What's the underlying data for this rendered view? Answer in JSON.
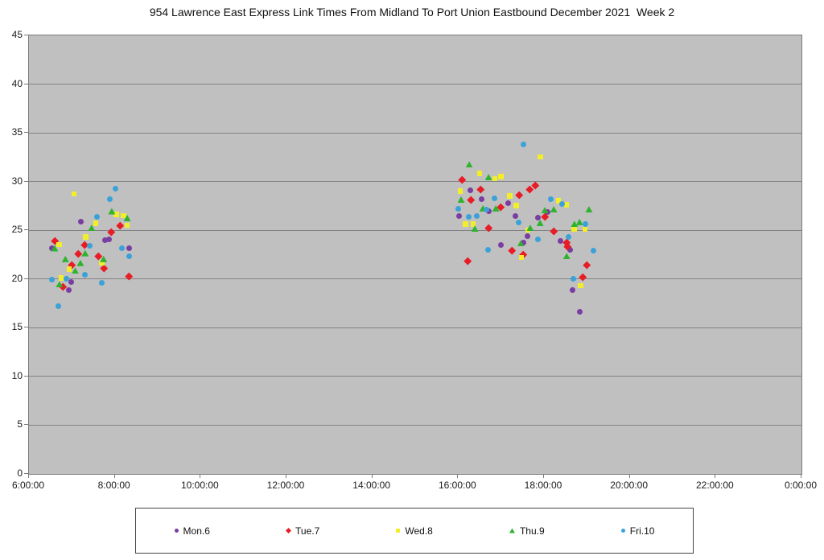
{
  "chart_data": {
    "type": "scatter",
    "title": "954 Lawrence East Express Link Times From Midland To Port Union Eastbound December 2021  Week 2",
    "xlabel": "",
    "ylabel": "",
    "x_unit": "time of day (decimal hours)",
    "y_unit": "link time (minutes)",
    "xlim": [
      6,
      24
    ],
    "ylim": [
      0,
      45
    ],
    "y_ticks": [
      0,
      5,
      10,
      15,
      20,
      25,
      30,
      35,
      40,
      45
    ],
    "x_ticks": [
      {
        "hour": 6,
        "label": "6:00:00"
      },
      {
        "hour": 8,
        "label": "8:00:00"
      },
      {
        "hour": 10,
        "label": "10:00:00"
      },
      {
        "hour": 12,
        "label": "12:00:00"
      },
      {
        "hour": 14,
        "label": "14:00:00"
      },
      {
        "hour": 16,
        "label": "16:00:00"
      },
      {
        "hour": 18,
        "label": "18:00:00"
      },
      {
        "hour": 20,
        "label": "20:00:00"
      },
      {
        "hour": 22,
        "label": "22:00:00"
      },
      {
        "hour": 24,
        "label": "0:00:00"
      }
    ],
    "grid": "horizontal",
    "legend_position": "bottom",
    "plot_bg_color": "#c0c0c0",
    "grid_color": "#828282",
    "series": [
      {
        "name": "Mon.6",
        "marker": "circle",
        "color": "#7a3da0",
        "points": [
          [
            6.53,
            23.2
          ],
          [
            6.93,
            18.9
          ],
          [
            6.98,
            19.7
          ],
          [
            7.2,
            25.9
          ],
          [
            7.77,
            24.0
          ],
          [
            7.87,
            24.1
          ],
          [
            8.34,
            23.2
          ],
          [
            16.03,
            26.5
          ],
          [
            16.29,
            29.1
          ],
          [
            16.55,
            28.2
          ],
          [
            16.71,
            27.0
          ],
          [
            17.0,
            23.5
          ],
          [
            17.17,
            27.8
          ],
          [
            17.33,
            26.5
          ],
          [
            17.53,
            23.7
          ],
          [
            17.61,
            24.4
          ],
          [
            17.85,
            26.3
          ],
          [
            18.08,
            26.9
          ],
          [
            18.38,
            23.9
          ],
          [
            18.6,
            23.0
          ],
          [
            18.67,
            18.9
          ],
          [
            18.84,
            16.6
          ]
        ]
      },
      {
        "name": "Tue.7",
        "marker": "diamond",
        "color": "#e81c25",
        "points": [
          [
            6.6,
            23.9
          ],
          [
            6.8,
            19.2
          ],
          [
            7.0,
            21.4
          ],
          [
            7.16,
            22.6
          ],
          [
            7.31,
            23.5
          ],
          [
            7.63,
            22.3
          ],
          [
            7.75,
            21.1
          ],
          [
            7.92,
            24.8
          ],
          [
            8.13,
            25.5
          ],
          [
            8.34,
            20.3
          ],
          [
            16.09,
            30.2
          ],
          [
            16.22,
            21.8
          ],
          [
            16.31,
            28.1
          ],
          [
            16.52,
            29.2
          ],
          [
            16.71,
            25.2
          ],
          [
            16.99,
            27.4
          ],
          [
            17.25,
            22.9
          ],
          [
            17.42,
            28.6
          ],
          [
            17.53,
            22.5
          ],
          [
            17.68,
            29.2
          ],
          [
            17.81,
            29.6
          ],
          [
            18.02,
            26.4
          ],
          [
            18.24,
            24.9
          ],
          [
            18.53,
            23.7
          ],
          [
            18.56,
            23.3
          ],
          [
            18.9,
            20.2
          ],
          [
            19.0,
            21.4
          ]
        ]
      },
      {
        "name": "Wed.8",
        "marker": "square",
        "color": "#f2ee2b",
        "points": [
          [
            6.71,
            23.5
          ],
          [
            6.75,
            20.1
          ],
          [
            6.94,
            21.0
          ],
          [
            7.05,
            28.7
          ],
          [
            7.33,
            24.3
          ],
          [
            7.56,
            25.7
          ],
          [
            7.7,
            21.6
          ],
          [
            8.04,
            26.6
          ],
          [
            8.21,
            26.5
          ],
          [
            8.29,
            25.5
          ],
          [
            16.05,
            29.0
          ],
          [
            16.18,
            25.6
          ],
          [
            16.35,
            25.6
          ],
          [
            16.5,
            30.8
          ],
          [
            16.86,
            30.3
          ],
          [
            17.0,
            30.5
          ],
          [
            17.21,
            28.5
          ],
          [
            17.36,
            27.5
          ],
          [
            17.48,
            22.2
          ],
          [
            17.63,
            25.0
          ],
          [
            17.92,
            32.5
          ],
          [
            18.34,
            28.0
          ],
          [
            18.53,
            27.6
          ],
          [
            18.71,
            25.1
          ],
          [
            18.86,
            19.3
          ],
          [
            18.96,
            25.1
          ]
        ]
      },
      {
        "name": "Thu.9",
        "marker": "triangle",
        "color": "#2fb32f",
        "points": [
          [
            6.58,
            23.2
          ],
          [
            6.69,
            19.5
          ],
          [
            6.83,
            22.1
          ],
          [
            7.06,
            20.9
          ],
          [
            7.18,
            21.7
          ],
          [
            7.29,
            22.7
          ],
          [
            7.44,
            25.3
          ],
          [
            7.72,
            22.1
          ],
          [
            7.91,
            27.0
          ],
          [
            8.27,
            26.3
          ],
          [
            16.05,
            28.2
          ],
          [
            16.24,
            31.8
          ],
          [
            16.37,
            25.2
          ],
          [
            16.56,
            27.3
          ],
          [
            16.69,
            30.5
          ],
          [
            16.86,
            27.3
          ],
          [
            17.44,
            23.7
          ],
          [
            17.66,
            25.3
          ],
          [
            17.89,
            25.8
          ],
          [
            18.0,
            27.1
          ],
          [
            18.21,
            27.2
          ],
          [
            18.51,
            22.4
          ],
          [
            18.69,
            25.7
          ],
          [
            18.81,
            25.9
          ],
          [
            19.03,
            27.2
          ]
        ]
      },
      {
        "name": "Fri.10",
        "marker": "circle",
        "color": "#3ba2d8",
        "points": [
          [
            6.54,
            19.9
          ],
          [
            6.69,
            17.2
          ],
          [
            6.88,
            20.0
          ],
          [
            7.31,
            20.4
          ],
          [
            7.42,
            23.4
          ],
          [
            7.59,
            26.4
          ],
          [
            7.7,
            19.6
          ],
          [
            7.88,
            28.2
          ],
          [
            8.01,
            29.3
          ],
          [
            8.17,
            23.2
          ],
          [
            8.33,
            22.3
          ],
          [
            16.01,
            27.2
          ],
          [
            16.24,
            26.4
          ],
          [
            16.43,
            26.5
          ],
          [
            16.65,
            27.1
          ],
          [
            16.69,
            23.0
          ],
          [
            16.84,
            28.3
          ],
          [
            17.4,
            25.8
          ],
          [
            17.53,
            33.8
          ],
          [
            17.85,
            24.1
          ],
          [
            18.15,
            28.2
          ],
          [
            18.42,
            27.7
          ],
          [
            18.58,
            24.3
          ],
          [
            18.68,
            20.0
          ],
          [
            18.96,
            25.6
          ],
          [
            19.16,
            22.9
          ]
        ]
      }
    ]
  }
}
